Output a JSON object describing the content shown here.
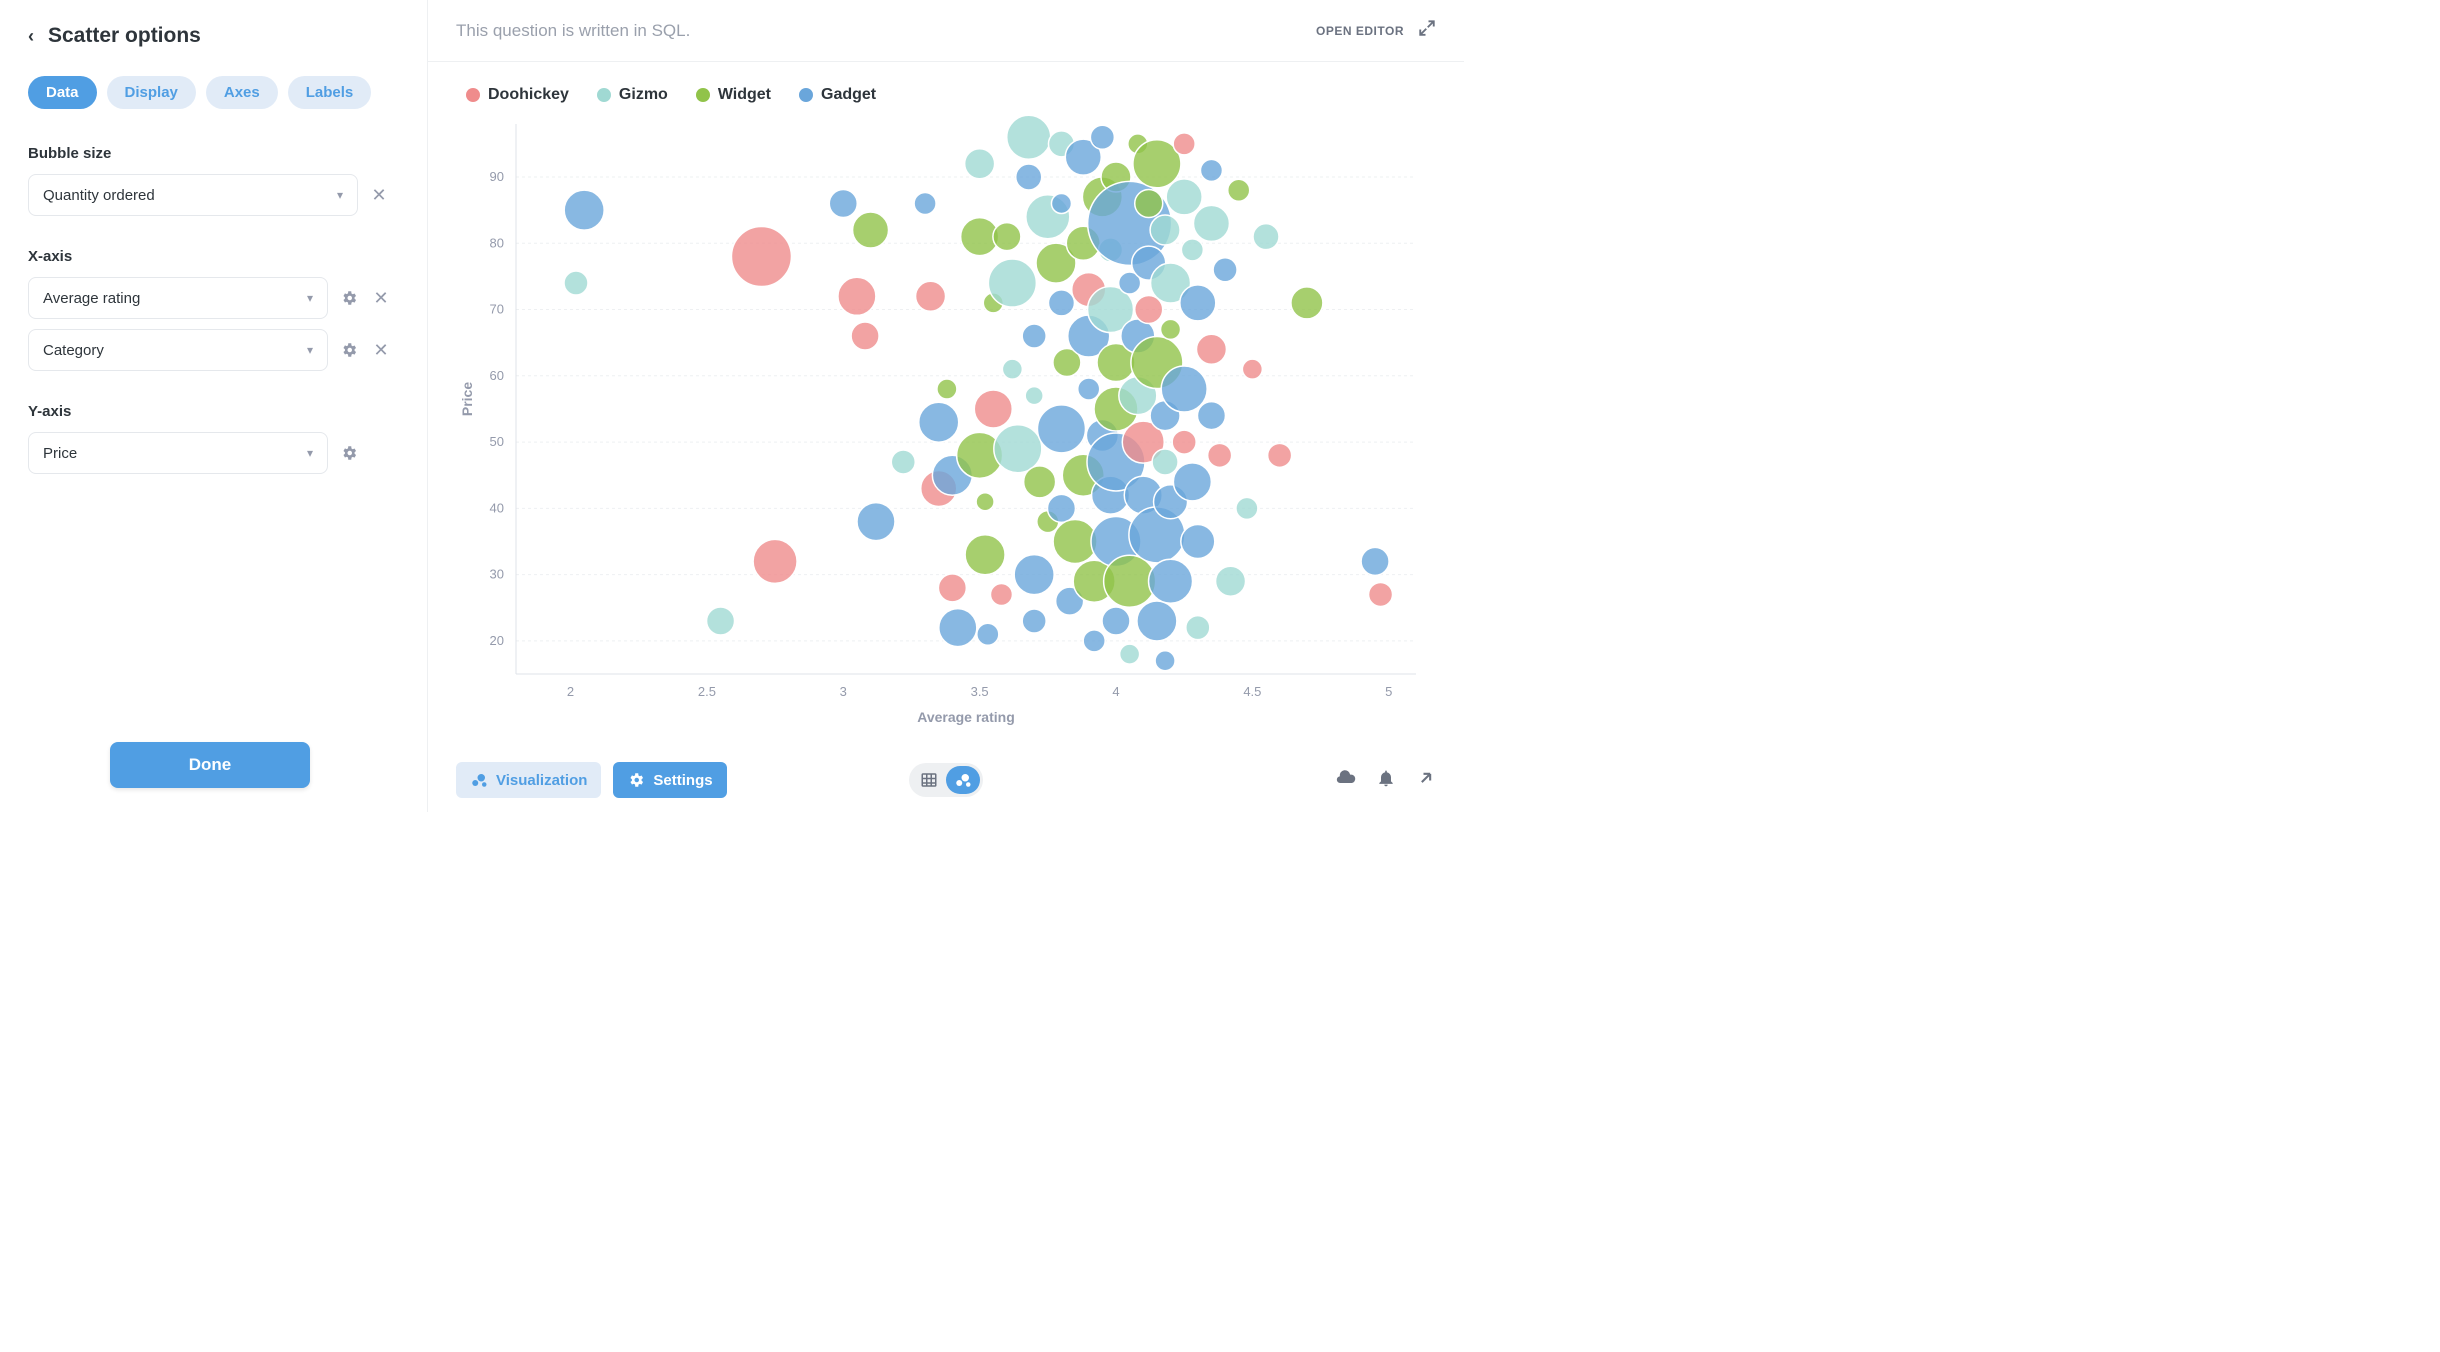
{
  "sidebar": {
    "title": "Scatter options",
    "tabs": [
      "Data",
      "Display",
      "Axes",
      "Labels"
    ],
    "activeTab": 0,
    "bubble_size_label": "Bubble size",
    "bubble_size_value": "Quantity ordered",
    "x_axis_label": "X-axis",
    "x_axis_values": [
      "Average rating",
      "Category"
    ],
    "y_axis_label": "Y-axis",
    "y_axis_value": "Price",
    "done_label": "Done"
  },
  "header": {
    "sql_note": "This question is written in SQL.",
    "open_editor": "OPEN EDITOR"
  },
  "footer": {
    "viz_label": "Visualization",
    "settings_label": "Settings"
  },
  "chart": {
    "type": "bubble-scatter",
    "x_label": "Average rating",
    "y_label": "Price",
    "xlim": [
      1.8,
      5.1
    ],
    "ylim": [
      15,
      98
    ],
    "xticks": [
      2,
      2.5,
      3,
      3.5,
      4,
      4.5,
      5
    ],
    "yticks": [
      20,
      30,
      40,
      50,
      60,
      70,
      80,
      90
    ],
    "grid_color": "#eef0f2",
    "axis_color": "#dfe3e8",
    "tick_fontsize": 13,
    "label_fontsize": 14,
    "tick_color": "#949aab",
    "label_color": "#949aab",
    "background_color": "#ffffff",
    "legend_fontsize": 16,
    "bubble_opacity": 0.8,
    "bubble_stroke": "#ffffff",
    "bubble_stroke_width": 1.5,
    "series": [
      {
        "name": "Doohickey",
        "color": "#ef8c8c"
      },
      {
        "name": "Gizmo",
        "color": "#a0d9d3"
      },
      {
        "name": "Widget",
        "color": "#91c34a"
      },
      {
        "name": "Gadget",
        "color": "#6aa6db"
      }
    ],
    "points": [
      {
        "x": 2.05,
        "y": 85,
        "r": 20,
        "s": 3
      },
      {
        "x": 2.02,
        "y": 74,
        "r": 12,
        "s": 1
      },
      {
        "x": 2.7,
        "y": 78,
        "r": 30,
        "s": 0
      },
      {
        "x": 2.75,
        "y": 32,
        "r": 22,
        "s": 0
      },
      {
        "x": 2.55,
        "y": 23,
        "r": 14,
        "s": 1
      },
      {
        "x": 3.0,
        "y": 86,
        "r": 14,
        "s": 3
      },
      {
        "x": 3.05,
        "y": 72,
        "r": 19,
        "s": 0
      },
      {
        "x": 3.08,
        "y": 66,
        "r": 14,
        "s": 0
      },
      {
        "x": 3.1,
        "y": 82,
        "r": 18,
        "s": 2
      },
      {
        "x": 3.12,
        "y": 38,
        "r": 19,
        "s": 3
      },
      {
        "x": 3.22,
        "y": 47,
        "r": 12,
        "s": 1
      },
      {
        "x": 3.3,
        "y": 86,
        "r": 11,
        "s": 3
      },
      {
        "x": 3.32,
        "y": 72,
        "r": 15,
        "s": 0
      },
      {
        "x": 3.35,
        "y": 53,
        "r": 20,
        "s": 3
      },
      {
        "x": 3.38,
        "y": 58,
        "r": 10,
        "s": 2
      },
      {
        "x": 3.35,
        "y": 43,
        "r": 18,
        "s": 0
      },
      {
        "x": 3.4,
        "y": 45,
        "r": 20,
        "s": 3
      },
      {
        "x": 3.4,
        "y": 28,
        "r": 14,
        "s": 0
      },
      {
        "x": 3.42,
        "y": 22,
        "r": 19,
        "s": 3
      },
      {
        "x": 3.5,
        "y": 92,
        "r": 15,
        "s": 1
      },
      {
        "x": 3.5,
        "y": 81,
        "r": 19,
        "s": 2
      },
      {
        "x": 3.5,
        "y": 48,
        "r": 23,
        "s": 2
      },
      {
        "x": 3.52,
        "y": 41,
        "r": 9,
        "s": 2
      },
      {
        "x": 3.52,
        "y": 33,
        "r": 20,
        "s": 2
      },
      {
        "x": 3.55,
        "y": 71,
        "r": 10,
        "s": 2
      },
      {
        "x": 3.55,
        "y": 55,
        "r": 19,
        "s": 0
      },
      {
        "x": 3.58,
        "y": 27,
        "r": 11,
        "s": 0
      },
      {
        "x": 3.53,
        "y": 21,
        "r": 11,
        "s": 3
      },
      {
        "x": 3.6,
        "y": 81,
        "r": 14,
        "s": 2
      },
      {
        "x": 3.62,
        "y": 74,
        "r": 24,
        "s": 1
      },
      {
        "x": 3.62,
        "y": 61,
        "r": 10,
        "s": 1
      },
      {
        "x": 3.64,
        "y": 49,
        "r": 24,
        "s": 1
      },
      {
        "x": 3.68,
        "y": 96,
        "r": 22,
        "s": 1
      },
      {
        "x": 3.68,
        "y": 90,
        "r": 13,
        "s": 3
      },
      {
        "x": 3.7,
        "y": 66,
        "r": 12,
        "s": 3
      },
      {
        "x": 3.7,
        "y": 57,
        "r": 9,
        "s": 1
      },
      {
        "x": 3.7,
        "y": 30,
        "r": 20,
        "s": 3
      },
      {
        "x": 3.7,
        "y": 23,
        "r": 12,
        "s": 3
      },
      {
        "x": 3.72,
        "y": 44,
        "r": 16,
        "s": 2
      },
      {
        "x": 3.75,
        "y": 84,
        "r": 22,
        "s": 1
      },
      {
        "x": 3.75,
        "y": 38,
        "r": 11,
        "s": 2
      },
      {
        "x": 3.78,
        "y": 77,
        "r": 20,
        "s": 2
      },
      {
        "x": 3.8,
        "y": 95,
        "r": 13,
        "s": 1
      },
      {
        "x": 3.8,
        "y": 86,
        "r": 10,
        "s": 3
      },
      {
        "x": 3.8,
        "y": 71,
        "r": 13,
        "s": 3
      },
      {
        "x": 3.8,
        "y": 52,
        "r": 24,
        "s": 3
      },
      {
        "x": 3.8,
        "y": 40,
        "r": 14,
        "s": 3
      },
      {
        "x": 3.82,
        "y": 62,
        "r": 14,
        "s": 2
      },
      {
        "x": 3.83,
        "y": 26,
        "r": 14,
        "s": 3
      },
      {
        "x": 3.85,
        "y": 35,
        "r": 22,
        "s": 2
      },
      {
        "x": 3.88,
        "y": 93,
        "r": 18,
        "s": 3
      },
      {
        "x": 3.88,
        "y": 80,
        "r": 17,
        "s": 2
      },
      {
        "x": 3.88,
        "y": 45,
        "r": 21,
        "s": 2
      },
      {
        "x": 3.9,
        "y": 73,
        "r": 17,
        "s": 0
      },
      {
        "x": 3.9,
        "y": 66,
        "r": 21,
        "s": 3
      },
      {
        "x": 3.9,
        "y": 58,
        "r": 11,
        "s": 3
      },
      {
        "x": 3.92,
        "y": 29,
        "r": 21,
        "s": 2
      },
      {
        "x": 3.92,
        "y": 20,
        "r": 11,
        "s": 3
      },
      {
        "x": 3.95,
        "y": 96,
        "r": 12,
        "s": 3
      },
      {
        "x": 3.95,
        "y": 87,
        "r": 20,
        "s": 2
      },
      {
        "x": 3.95,
        "y": 51,
        "r": 16,
        "s": 3
      },
      {
        "x": 3.98,
        "y": 79,
        "r": 12,
        "s": 1
      },
      {
        "x": 3.98,
        "y": 70,
        "r": 23,
        "s": 1
      },
      {
        "x": 3.98,
        "y": 42,
        "r": 19,
        "s": 3
      },
      {
        "x": 4.0,
        "y": 90,
        "r": 15,
        "s": 2
      },
      {
        "x": 4.0,
        "y": 62,
        "r": 19,
        "s": 2
      },
      {
        "x": 4.0,
        "y": 55,
        "r": 22,
        "s": 2
      },
      {
        "x": 4.0,
        "y": 47,
        "r": 29,
        "s": 3
      },
      {
        "x": 4.0,
        "y": 35,
        "r": 25,
        "s": 3
      },
      {
        "x": 4.0,
        "y": 23,
        "r": 14,
        "s": 3
      },
      {
        "x": 4.05,
        "y": 83,
        "r": 42,
        "s": 3
      },
      {
        "x": 4.05,
        "y": 74,
        "r": 11,
        "s": 3
      },
      {
        "x": 4.05,
        "y": 29,
        "r": 26,
        "s": 2
      },
      {
        "x": 4.05,
        "y": 18,
        "r": 10,
        "s": 1
      },
      {
        "x": 4.08,
        "y": 95,
        "r": 10,
        "s": 2
      },
      {
        "x": 4.08,
        "y": 66,
        "r": 17,
        "s": 3
      },
      {
        "x": 4.08,
        "y": 57,
        "r": 19,
        "s": 1
      },
      {
        "x": 4.1,
        "y": 50,
        "r": 21,
        "s": 0
      },
      {
        "x": 4.1,
        "y": 42,
        "r": 19,
        "s": 3
      },
      {
        "x": 4.12,
        "y": 86,
        "r": 14,
        "s": 2
      },
      {
        "x": 4.12,
        "y": 77,
        "r": 17,
        "s": 3
      },
      {
        "x": 4.12,
        "y": 70,
        "r": 14,
        "s": 0
      },
      {
        "x": 4.15,
        "y": 92,
        "r": 24,
        "s": 2
      },
      {
        "x": 4.15,
        "y": 62,
        "r": 26,
        "s": 2
      },
      {
        "x": 4.15,
        "y": 36,
        "r": 28,
        "s": 3
      },
      {
        "x": 4.15,
        "y": 23,
        "r": 20,
        "s": 3
      },
      {
        "x": 4.18,
        "y": 82,
        "r": 15,
        "s": 1
      },
      {
        "x": 4.18,
        "y": 54,
        "r": 15,
        "s": 3
      },
      {
        "x": 4.18,
        "y": 47,
        "r": 13,
        "s": 1
      },
      {
        "x": 4.18,
        "y": 17,
        "r": 10,
        "s": 3
      },
      {
        "x": 4.2,
        "y": 74,
        "r": 20,
        "s": 1
      },
      {
        "x": 4.2,
        "y": 67,
        "r": 10,
        "s": 2
      },
      {
        "x": 4.2,
        "y": 41,
        "r": 17,
        "s": 3
      },
      {
        "x": 4.2,
        "y": 29,
        "r": 22,
        "s": 3
      },
      {
        "x": 4.25,
        "y": 95,
        "r": 11,
        "s": 0
      },
      {
        "x": 4.25,
        "y": 87,
        "r": 18,
        "s": 1
      },
      {
        "x": 4.25,
        "y": 58,
        "r": 23,
        "s": 3
      },
      {
        "x": 4.25,
        "y": 50,
        "r": 12,
        "s": 0
      },
      {
        "x": 4.28,
        "y": 79,
        "r": 11,
        "s": 1
      },
      {
        "x": 4.28,
        "y": 44,
        "r": 19,
        "s": 3
      },
      {
        "x": 4.3,
        "y": 71,
        "r": 18,
        "s": 3
      },
      {
        "x": 4.3,
        "y": 35,
        "r": 17,
        "s": 3
      },
      {
        "x": 4.3,
        "y": 22,
        "r": 12,
        "s": 1
      },
      {
        "x": 4.35,
        "y": 91,
        "r": 11,
        "s": 3
      },
      {
        "x": 4.35,
        "y": 83,
        "r": 18,
        "s": 1
      },
      {
        "x": 4.35,
        "y": 64,
        "r": 15,
        "s": 0
      },
      {
        "x": 4.35,
        "y": 54,
        "r": 14,
        "s": 3
      },
      {
        "x": 4.38,
        "y": 48,
        "r": 12,
        "s": 0
      },
      {
        "x": 4.4,
        "y": 76,
        "r": 12,
        "s": 3
      },
      {
        "x": 4.42,
        "y": 29,
        "r": 15,
        "s": 1
      },
      {
        "x": 4.45,
        "y": 88,
        "r": 11,
        "s": 2
      },
      {
        "x": 4.48,
        "y": 40,
        "r": 11,
        "s": 1
      },
      {
        "x": 4.5,
        "y": 61,
        "r": 10,
        "s": 0
      },
      {
        "x": 4.55,
        "y": 81,
        "r": 13,
        "s": 1
      },
      {
        "x": 4.6,
        "y": 48,
        "r": 12,
        "s": 0
      },
      {
        "x": 4.7,
        "y": 71,
        "r": 16,
        "s": 2
      },
      {
        "x": 4.95,
        "y": 32,
        "r": 14,
        "s": 3
      },
      {
        "x": 4.97,
        "y": 27,
        "r": 12,
        "s": 0
      }
    ]
  }
}
